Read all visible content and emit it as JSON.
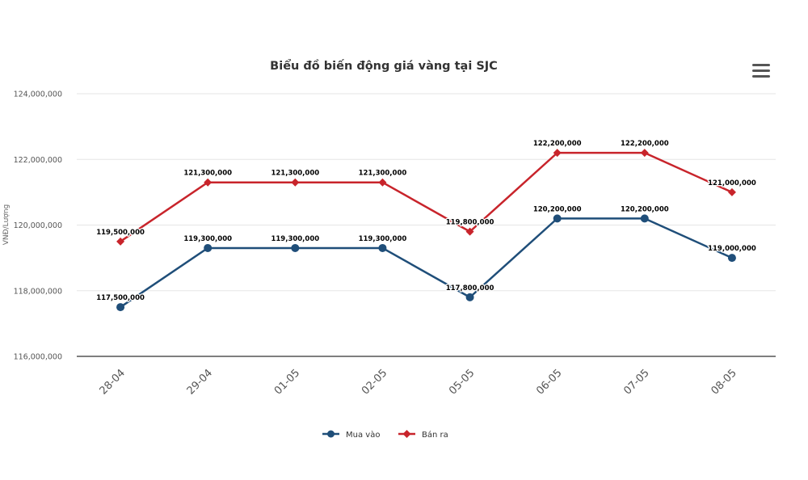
{
  "chart_data": {
    "type": "line",
    "title": "Biểu đồ biến động giá vàng tại SJC",
    "ylabel": "VNĐ/Lượng",
    "xlabel": "",
    "categories": [
      "28-04",
      "29-04",
      "01-05",
      "02-05",
      "05-05",
      "06-05",
      "07-05",
      "08-05"
    ],
    "ylim": [
      116000000,
      124000000
    ],
    "yticks": [
      116000000,
      118000000,
      120000000,
      122000000,
      124000000
    ],
    "ytick_labels": [
      "116,000,000",
      "118,000,000",
      "120,000,000",
      "122,000,000",
      "124,000,000"
    ],
    "grid": true,
    "legend_position": "bottom-center",
    "series": [
      {
        "name": "Mua vào",
        "color": "#1f4e79",
        "marker": "circle",
        "values": [
          117500000,
          119300000,
          119300000,
          119300000,
          117800000,
          120200000,
          120200000,
          119000000
        ],
        "labels": [
          "117,500,000",
          "119,300,000",
          "119,300,000",
          "119,300,000",
          "117,800,000",
          "120,200,000",
          "120,200,000",
          "119,000,000"
        ]
      },
      {
        "name": "Bán ra",
        "color": "#c8242b",
        "marker": "diamond",
        "values": [
          119500000,
          121300000,
          121300000,
          121300000,
          119800000,
          122200000,
          122200000,
          121000000
        ],
        "labels": [
          "119,500,000",
          "121,300,000",
          "121,300,000",
          "121,300,000",
          "119,800,000",
          "122,200,000",
          "122,200,000",
          "121,000,000"
        ]
      }
    ]
  },
  "toolbar": {
    "menu_icon": "hamburger-menu-icon"
  }
}
